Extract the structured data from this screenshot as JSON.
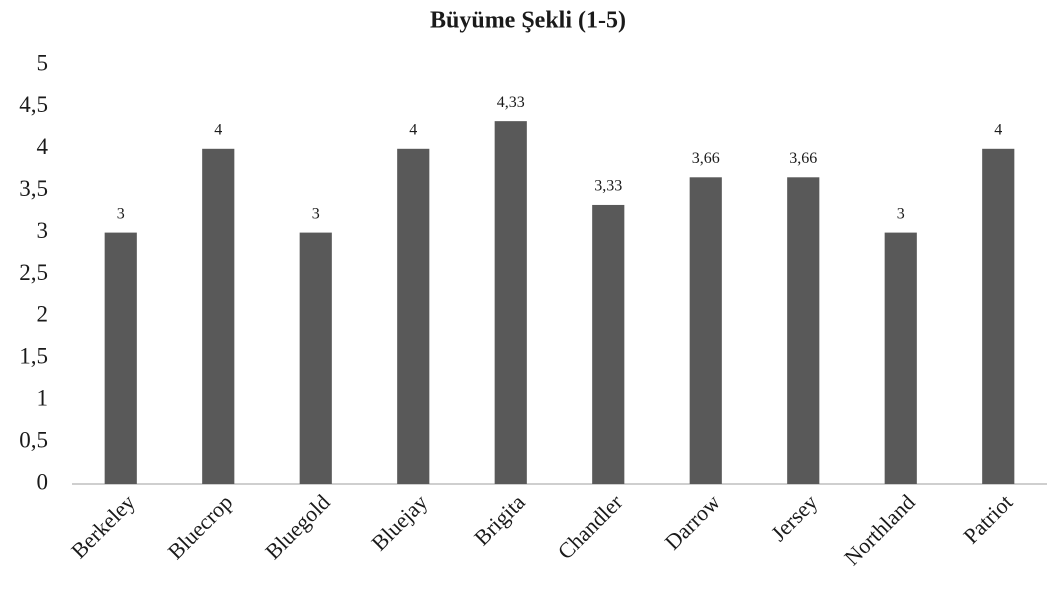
{
  "chart_data": {
    "type": "bar",
    "title": "Büyüme Şekli (1-5)",
    "categories": [
      "Berkeley",
      "Bluecrop",
      "Bluegold",
      "Bluejay",
      "Brigita",
      "Chandler",
      "Darrow",
      "Jersey",
      "Northland",
      "Patriot"
    ],
    "values": [
      3,
      4,
      3,
      4,
      4.33,
      3.33,
      3.66,
      3.66,
      3,
      4
    ],
    "value_labels": [
      "3",
      "4",
      "3",
      "4",
      "4,33",
      "3,33",
      "3,66",
      "3,66",
      "3",
      "4"
    ],
    "color": "#595959",
    "ylim": [
      0,
      5
    ],
    "yticks": [
      0,
      {
        "value": 0.5,
        "label": "0,5"
      },
      1,
      {
        "value": 1.5,
        "label": "1,5"
      },
      2,
      {
        "value": 2.5,
        "label": "2,5"
      },
      3,
      {
        "value": 3.5,
        "label": "3,5"
      },
      4,
      {
        "value": 4.5,
        "label": "4,5"
      },
      5
    ],
    "grid": false
  }
}
